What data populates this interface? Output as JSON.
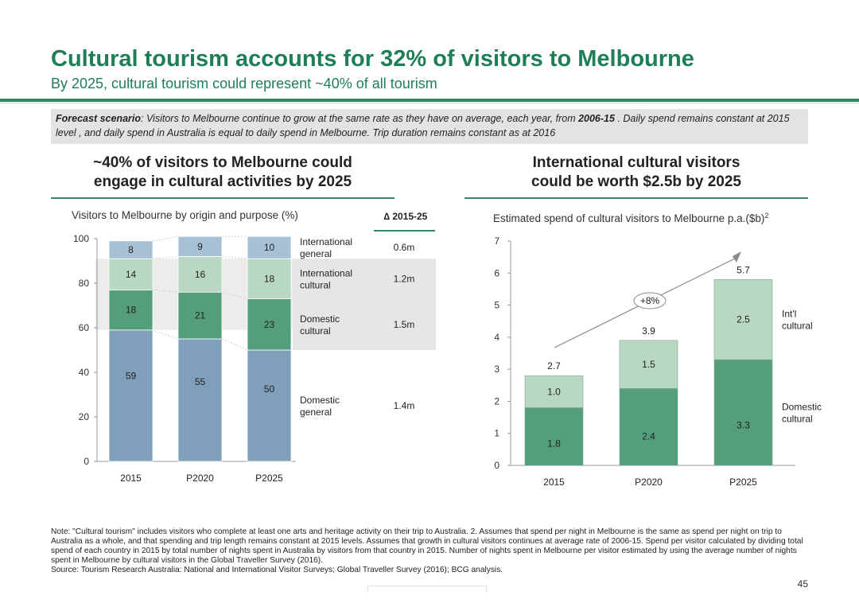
{
  "title": "Cultural tourism accounts for 32% of visitors to Melbourne",
  "subtitle": "By 2025, cultural tourism could represent ~40% of all tourism",
  "scenario": {
    "label": "Forecast scenario",
    "text_a": ": Visitors to Melbourne continue to grow at the same rate as they have on average, each year, from ",
    "period": "2006-15",
    "text_b": " . Daily spend remains constant at 2015 level , and daily spend in Australia is equal to daily spend in Melbourne. Trip duration remains constant as at 2016"
  },
  "left_panel": {
    "heading_line1": "~40% of visitors to Melbourne could",
    "heading_line2": "engage in cultural activities by 2025"
  },
  "right_panel": {
    "heading_line1": "International cultural visitors",
    "heading_line2": "could be worth $2.5b by 2025"
  },
  "chart_data": [
    {
      "type": "bar",
      "stacked": true,
      "title": "Visitors to Melbourne by origin and purpose (%)",
      "categories": [
        "2015",
        "P2020",
        "P2025"
      ],
      "ylim": [
        0,
        100
      ],
      "yticks": [
        0,
        20,
        40,
        60,
        80,
        100
      ],
      "series": [
        {
          "name": "Domestic general",
          "label_lines": [
            "Domestic",
            "general"
          ],
          "values": [
            59,
            55,
            50
          ],
          "color": "#7f9fbb"
        },
        {
          "name": "Domestic cultural",
          "label_lines": [
            "Domestic",
            "cultural"
          ],
          "values": [
            18,
            21,
            23
          ],
          "color": "#549e7c"
        },
        {
          "name": "International cultural",
          "label_lines": [
            "International",
            "cultural"
          ],
          "values": [
            14,
            16,
            18
          ],
          "color": "#b8d8c4"
        },
        {
          "name": "International general",
          "label_lines": [
            "International",
            "general"
          ],
          "values": [
            8,
            9,
            10
          ],
          "color": "#a8c0d4"
        }
      ],
      "delta_header": "∆ 2015-25",
      "deltas": [
        "1.4m",
        "1.5m",
        "1.2m",
        "0.6m"
      ],
      "grid": false
    },
    {
      "type": "bar",
      "stacked": true,
      "title": "Estimated spend of cultural visitors to Melbourne p.a.($b)",
      "title_sup": "2",
      "categories": [
        "2015",
        "P2020",
        "P2025"
      ],
      "ylim": [
        0,
        7
      ],
      "yticks": [
        0,
        1,
        2,
        3,
        4,
        5,
        6,
        7
      ],
      "series": [
        {
          "name": "Domestic cultural",
          "label_lines": [
            "Domestic",
            "cultural"
          ],
          "values": [
            1.8,
            2.4,
            3.3
          ],
          "color": "#549e7c"
        },
        {
          "name": "Int'l cultural",
          "label_lines": [
            "Int'l",
            "cultural"
          ],
          "values": [
            1.0,
            1.5,
            2.5
          ],
          "color": "#b8d8c4"
        }
      ],
      "totals": [
        "2.7",
        "3.9",
        "5.7"
      ],
      "growth_label": "+8%",
      "grid": false
    }
  ],
  "notes": "Note: \"Cultural tourism\" includes visitors who complete at least one arts and heritage activity on their trip to Australia. 2. Assumes that spend per night in Melbourne is the same as spend per night on trip to Australia as a whole, and that spending and trip length remains constant at 2015 levels. Assumes that growth in cultural visitors continues at average rate of 2006-15. Spend per visitor calculated by dividing total spend of each country in 2015 by total number of nights spent in Australia by visitors from that country in 2015. Number of nights spent in Melbourne per visitor estimated by using the average number of nights spent in Melbourne by cultural visitors in the Global Traveller Survey (2016).",
  "source": "Source: Tourism Research Australia: National and International Visitor Surveys; Global Traveller Survey (2016); BCG analysis.",
  "page_number": "45"
}
